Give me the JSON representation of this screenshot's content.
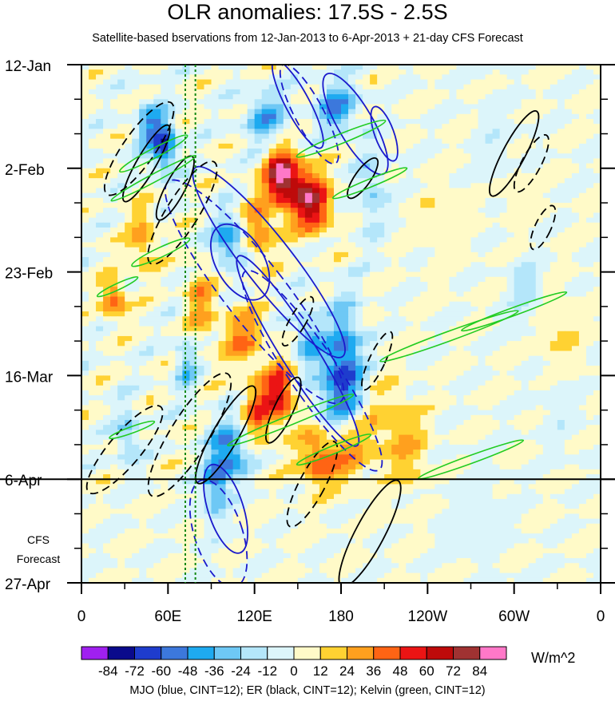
{
  "title": "OLR anomalies: 17.5S - 2.5S",
  "subtitle": "Satellite-based bservations from 12-Jan-2013 to 6-Apr-2013 + 21-day CFS Forecast",
  "forecast_label": [
    "CFS",
    "Forecast"
  ],
  "units": "W/m^2",
  "caption": "MJO (blue, CINT=12); ER (black, CINT=12); Kelvin (green, CINT=12)",
  "colors": {
    "mjo": "#1a1acc",
    "er": "#000000",
    "kelvin": "#22cc22",
    "reference_lines": "#118811"
  },
  "chart_data": {
    "type": "heatmap",
    "x_ticks": [
      "0",
      "60E",
      "120E",
      "180",
      "120W",
      "60W",
      "0"
    ],
    "x_tick_lon": [
      0,
      60,
      120,
      180,
      240,
      300,
      360
    ],
    "xlim": [
      0,
      360
    ],
    "y_ticks": [
      "12-Jan",
      "2-Feb",
      "23-Feb",
      "16-Mar",
      "6-Apr",
      "27-Apr"
    ],
    "y_tick_days": [
      0,
      21,
      42,
      63,
      84,
      105
    ],
    "ylim_days": [
      0,
      105
    ],
    "observations_end": "6-Apr",
    "reference_lons": [
      72,
      79
    ],
    "colorbar": {
      "levels": [
        "-84",
        "-72",
        "-60",
        "-48",
        "-36",
        "-24",
        "-12",
        "0",
        "12",
        "24",
        "36",
        "48",
        "60",
        "72",
        "84"
      ],
      "colors": [
        "#a020f0",
        "#0a0a8c",
        "#1e3ccd",
        "#3c78dc",
        "#1eaaf0",
        "#6ec8f5",
        "#b4e6fa",
        "#dcf5fa",
        "#fffac8",
        "#ffd232",
        "#ffa01e",
        "#ff6414",
        "#eb1414",
        "#be0a0a",
        "#a03232",
        "#ff78c8"
      ]
    },
    "annotations": [
      {
        "name": "MJO",
        "color": "blue",
        "cint": 12
      },
      {
        "name": "ER",
        "color": "black",
        "cint": 12
      },
      {
        "name": "Kelvin",
        "color": "green",
        "cint": 12
      }
    ]
  }
}
